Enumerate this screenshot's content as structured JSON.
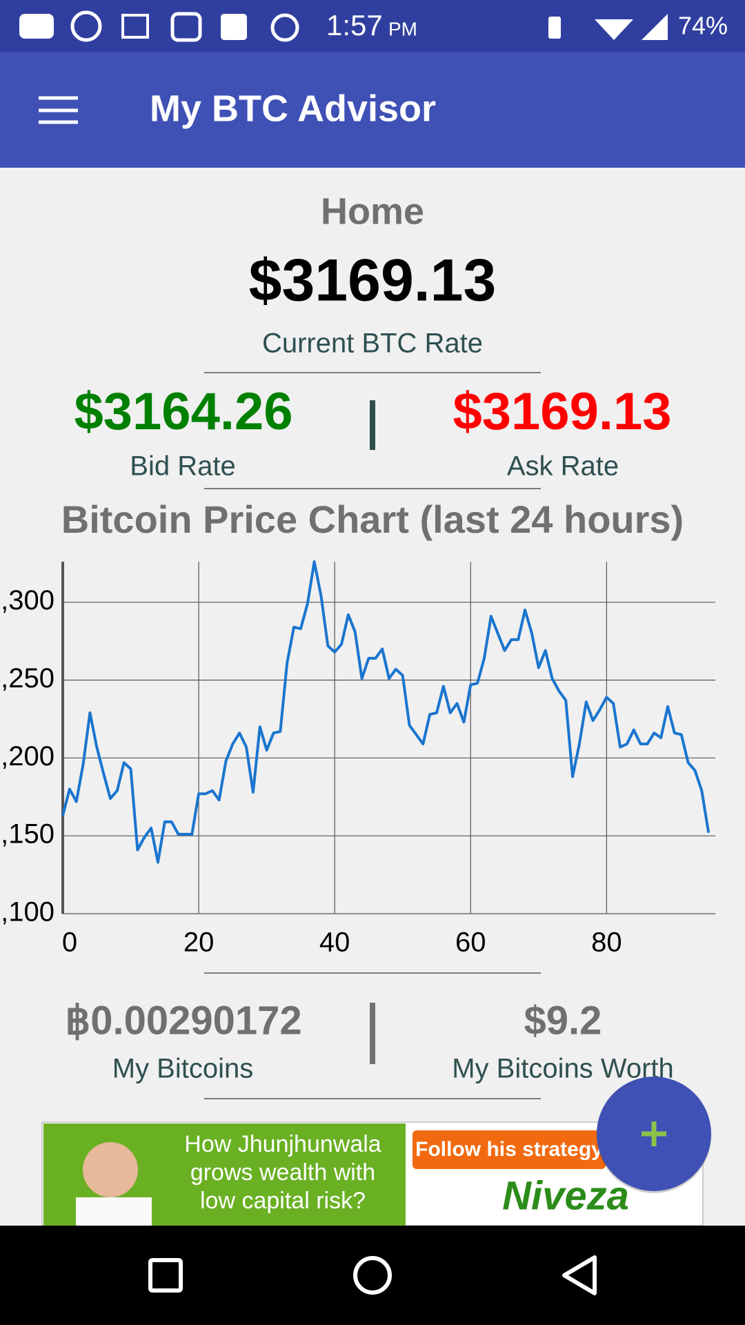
{
  "status_bar": {
    "time": "1:57",
    "am_pm": "PM",
    "battery": "74%"
  },
  "app_bar": {
    "title": "My BTC Advisor"
  },
  "home": {
    "heading": "Home",
    "current_rate": "$3169.13",
    "current_rate_label": "Current BTC Rate",
    "bid_rate": "$3164.26",
    "bid_rate_label": "Bid Rate",
    "ask_rate": "$3169.13",
    "ask_rate_label": "Ask Rate"
  },
  "chart_data": {
    "type": "line",
    "title": "Bitcoin Price Chart (last 24 hours)",
    "color": "#1a75cf",
    "grid": true,
    "x": [
      0,
      1,
      2,
      3,
      4,
      5,
      6,
      7,
      8,
      9,
      10,
      11,
      12,
      13,
      14,
      15,
      16,
      17,
      18,
      19,
      20,
      21,
      22,
      23,
      24,
      25,
      26,
      27,
      28,
      29,
      30,
      31,
      32,
      33,
      34,
      35,
      36,
      37,
      38,
      39,
      40,
      41,
      42,
      43,
      44,
      45,
      46,
      47,
      48,
      49,
      50,
      51,
      52,
      53,
      54,
      55,
      56,
      57,
      58,
      59,
      60,
      61,
      62,
      63,
      64,
      65,
      66,
      67,
      68,
      69,
      70,
      71,
      72,
      73,
      74,
      75,
      76,
      77,
      78,
      79,
      80,
      81,
      82,
      83,
      84,
      85,
      86,
      87,
      88,
      89,
      90,
      91,
      92,
      93,
      94,
      95
    ],
    "values": [
      3163,
      3180,
      3172,
      3196,
      3229,
      3207,
      3190,
      3174,
      3179,
      3197,
      3193,
      3141,
      3149,
      3155,
      3133,
      3159,
      3159,
      3151,
      3151,
      3151,
      3177,
      3177,
      3179,
      3173,
      3198,
      3209,
      3216,
      3207,
      3178,
      3220,
      3205,
      3216,
      3217,
      3261,
      3284,
      3283,
      3299,
      3326,
      3304,
      3272,
      3268,
      3273,
      3292,
      3281,
      3251,
      3264,
      3264,
      3270,
      3251,
      3257,
      3253,
      3221,
      3215,
      3209,
      3228,
      3229,
      3246,
      3229,
      3235,
      3223,
      3247,
      3248,
      3264,
      3291,
      3280,
      3269,
      3276,
      3276,
      3295,
      3280,
      3258,
      3269,
      3251,
      3243,
      3237,
      3188,
      3209,
      3236,
      3224,
      3231,
      3239,
      3235,
      3207,
      3209,
      3218,
      3209,
      3209,
      3216,
      3213,
      3233,
      3216,
      3215,
      3197,
      3192,
      3179,
      3152
    ],
    "xlim": [
      0,
      96
    ],
    "xticks": [
      0,
      20,
      40,
      60,
      80
    ],
    "ylim": [
      3100,
      3326
    ],
    "yticks": [
      {
        "value": 3100,
        "label": ",100"
      },
      {
        "value": 3150,
        "label": ",150"
      },
      {
        "value": 3200,
        "label": ",200"
      },
      {
        "value": 3250,
        "label": ",250"
      },
      {
        "value": 3300,
        "label": ",300"
      }
    ]
  },
  "wallet": {
    "bitcoins": "฿0.00290172",
    "bitcoins_label": "My Bitcoins",
    "worth": "$9.2",
    "worth_label": "My Bitcoins Worth"
  },
  "ad": {
    "headline": [
      "How Jhunjhunwala",
      "grows wealth with",
      "low capital risk?"
    ],
    "cta": "Follow his strategy",
    "brand": "Niveza"
  }
}
